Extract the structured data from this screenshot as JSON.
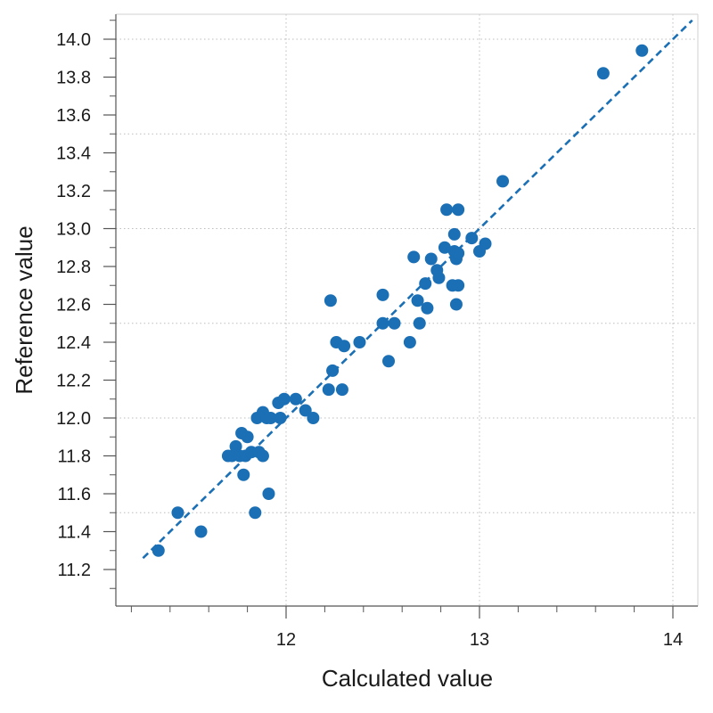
{
  "chart_data": {
    "type": "scatter",
    "title": "",
    "xlabel": "Calculated value",
    "ylabel": "Reference value",
    "xlim": [
      11.1,
      14.1
    ],
    "ylim": [
      11.1,
      14.1
    ],
    "x_ticks": [
      {
        "value": 12,
        "label": "12"
      },
      {
        "value": 13,
        "label": "13"
      },
      {
        "value": 14,
        "label": "14"
      }
    ],
    "x_minor_step": 0.2,
    "y_ticks": [
      {
        "value": 11.2,
        "label": "11.2"
      },
      {
        "value": 11.4,
        "label": "11.4"
      },
      {
        "value": 11.6,
        "label": "11.6"
      },
      {
        "value": 11.8,
        "label": "11.8"
      },
      {
        "value": 12.0,
        "label": "12.0"
      },
      {
        "value": 12.2,
        "label": "12.2"
      },
      {
        "value": 12.4,
        "label": "12.4"
      },
      {
        "value": 12.6,
        "label": "12.6"
      },
      {
        "value": 12.8,
        "label": "12.8"
      },
      {
        "value": 13.0,
        "label": "13.0"
      },
      {
        "value": 13.2,
        "label": "13.2"
      },
      {
        "value": 13.4,
        "label": "13.4"
      },
      {
        "value": 13.6,
        "label": "13.6"
      },
      {
        "value": 13.8,
        "label": "13.8"
      },
      {
        "value": 14.0,
        "label": "14.0"
      }
    ],
    "y_minor_step": 0.1,
    "x_gridlines": [
      12,
      13,
      14
    ],
    "y_gridlines": [
      11.5,
      12.0,
      12.5,
      13.0,
      13.5,
      14.0
    ],
    "grid": true,
    "legend": "none",
    "colors": {
      "marker": "#1a6fb5",
      "fit_line": "#1a6fb5",
      "grid": "#bdbdbd",
      "axis": "#555555",
      "frame": "#d0d0d0"
    },
    "fit_line": {
      "style": "dashed",
      "x": [
        11.26,
        14.1
      ],
      "y": [
        11.26,
        14.1
      ]
    },
    "series": [
      {
        "x": [
          11.34,
          11.44,
          11.56,
          11.7,
          11.72,
          11.74,
          11.76,
          11.77,
          11.78,
          11.79,
          11.8,
          11.82,
          11.84,
          11.85,
          11.86,
          11.88,
          11.88,
          11.9,
          11.91,
          11.92,
          11.96,
          11.97,
          11.99,
          12.05,
          12.1,
          12.14,
          12.22,
          12.23,
          12.24,
          12.26,
          12.29,
          12.3,
          12.38,
          12.5,
          12.5,
          12.53,
          12.56,
          12.64,
          12.66,
          12.68,
          12.69,
          12.72,
          12.73,
          12.75,
          12.78,
          12.79,
          12.82,
          12.83,
          12.86,
          12.87,
          12.87,
          12.88,
          12.88,
          12.89,
          12.89,
          12.89,
          12.96,
          13.0,
          13.03,
          13.12,
          13.64,
          13.84
        ],
        "y": [
          11.3,
          11.5,
          11.4,
          11.8,
          11.8,
          11.85,
          11.8,
          11.92,
          11.7,
          11.8,
          11.9,
          11.82,
          11.5,
          12.0,
          11.82,
          11.8,
          12.03,
          12.0,
          11.6,
          12.0,
          12.08,
          12.0,
          12.1,
          12.1,
          12.04,
          12.0,
          12.15,
          12.62,
          12.25,
          12.4,
          12.15,
          12.38,
          12.4,
          12.65,
          12.5,
          12.3,
          12.5,
          12.4,
          12.85,
          12.62,
          12.5,
          12.71,
          12.58,
          12.84,
          12.78,
          12.74,
          12.9,
          13.1,
          12.7,
          12.97,
          12.88,
          12.6,
          12.84,
          13.1,
          12.7,
          12.87,
          12.95,
          12.88,
          12.92,
          13.25,
          13.82,
          13.94
        ]
      }
    ]
  }
}
